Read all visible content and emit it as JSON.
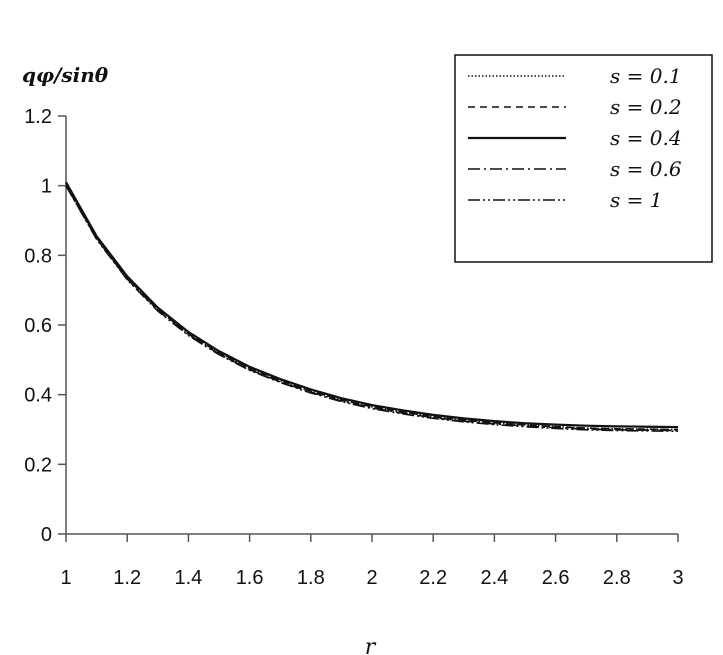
{
  "chart_data": {
    "type": "line",
    "ylabel": "qφ/sinθ",
    "xlabel": "r",
    "xlim": [
      1,
      3
    ],
    "ylim": [
      0,
      1.2
    ],
    "xticks": [
      "1",
      "1.2",
      "1.4",
      "1.6",
      "1.8",
      "2",
      "2.2",
      "2.4",
      "2.6",
      "2.8",
      "3"
    ],
    "yticks": [
      "0",
      "0.2",
      "0.4",
      "0.6",
      "0.8",
      "1",
      "1.2"
    ],
    "legend_position": "top-right",
    "grid": false,
    "x": [
      1.0,
      1.1,
      1.2,
      1.3,
      1.4,
      1.5,
      1.6,
      1.7,
      1.8,
      1.9,
      2.0,
      2.1,
      2.2,
      2.3,
      2.4,
      2.5,
      2.6,
      2.7,
      2.8,
      2.9,
      3.0
    ],
    "series": [
      {
        "name": "s = 0.1",
        "dash": "dotted",
        "values": [
          1.0,
          0.85,
          0.735,
          0.645,
          0.575,
          0.52,
          0.475,
          0.44,
          0.41,
          0.385,
          0.365,
          0.35,
          0.337,
          0.327,
          0.319,
          0.313,
          0.308,
          0.304,
          0.302,
          0.301,
          0.3
        ]
      },
      {
        "name": "s = 0.2",
        "dash": "dashed",
        "values": [
          1.0,
          0.85,
          0.735,
          0.645,
          0.575,
          0.52,
          0.475,
          0.44,
          0.41,
          0.385,
          0.365,
          0.35,
          0.337,
          0.327,
          0.319,
          0.313,
          0.308,
          0.304,
          0.302,
          0.301,
          0.3
        ]
      },
      {
        "name": "s = 0.4",
        "dash": "solid",
        "values": [
          1.01,
          0.855,
          0.74,
          0.65,
          0.58,
          0.525,
          0.48,
          0.445,
          0.415,
          0.39,
          0.37,
          0.355,
          0.342,
          0.332,
          0.324,
          0.318,
          0.314,
          0.311,
          0.309,
          0.308,
          0.307
        ]
      },
      {
        "name": "s = 0.6",
        "dash": "dashdot",
        "values": [
          1.0,
          0.848,
          0.732,
          0.642,
          0.572,
          0.517,
          0.472,
          0.437,
          0.407,
          0.382,
          0.362,
          0.347,
          0.334,
          0.324,
          0.316,
          0.31,
          0.305,
          0.301,
          0.299,
          0.298,
          0.297
        ]
      },
      {
        "name": "s = 1",
        "dash": "dashdotdot",
        "values": [
          1.0,
          0.846,
          0.73,
          0.64,
          0.57,
          0.515,
          0.47,
          0.435,
          0.405,
          0.38,
          0.36,
          0.345,
          0.332,
          0.322,
          0.314,
          0.308,
          0.303,
          0.299,
          0.297,
          0.296,
          0.295
        ]
      }
    ]
  }
}
